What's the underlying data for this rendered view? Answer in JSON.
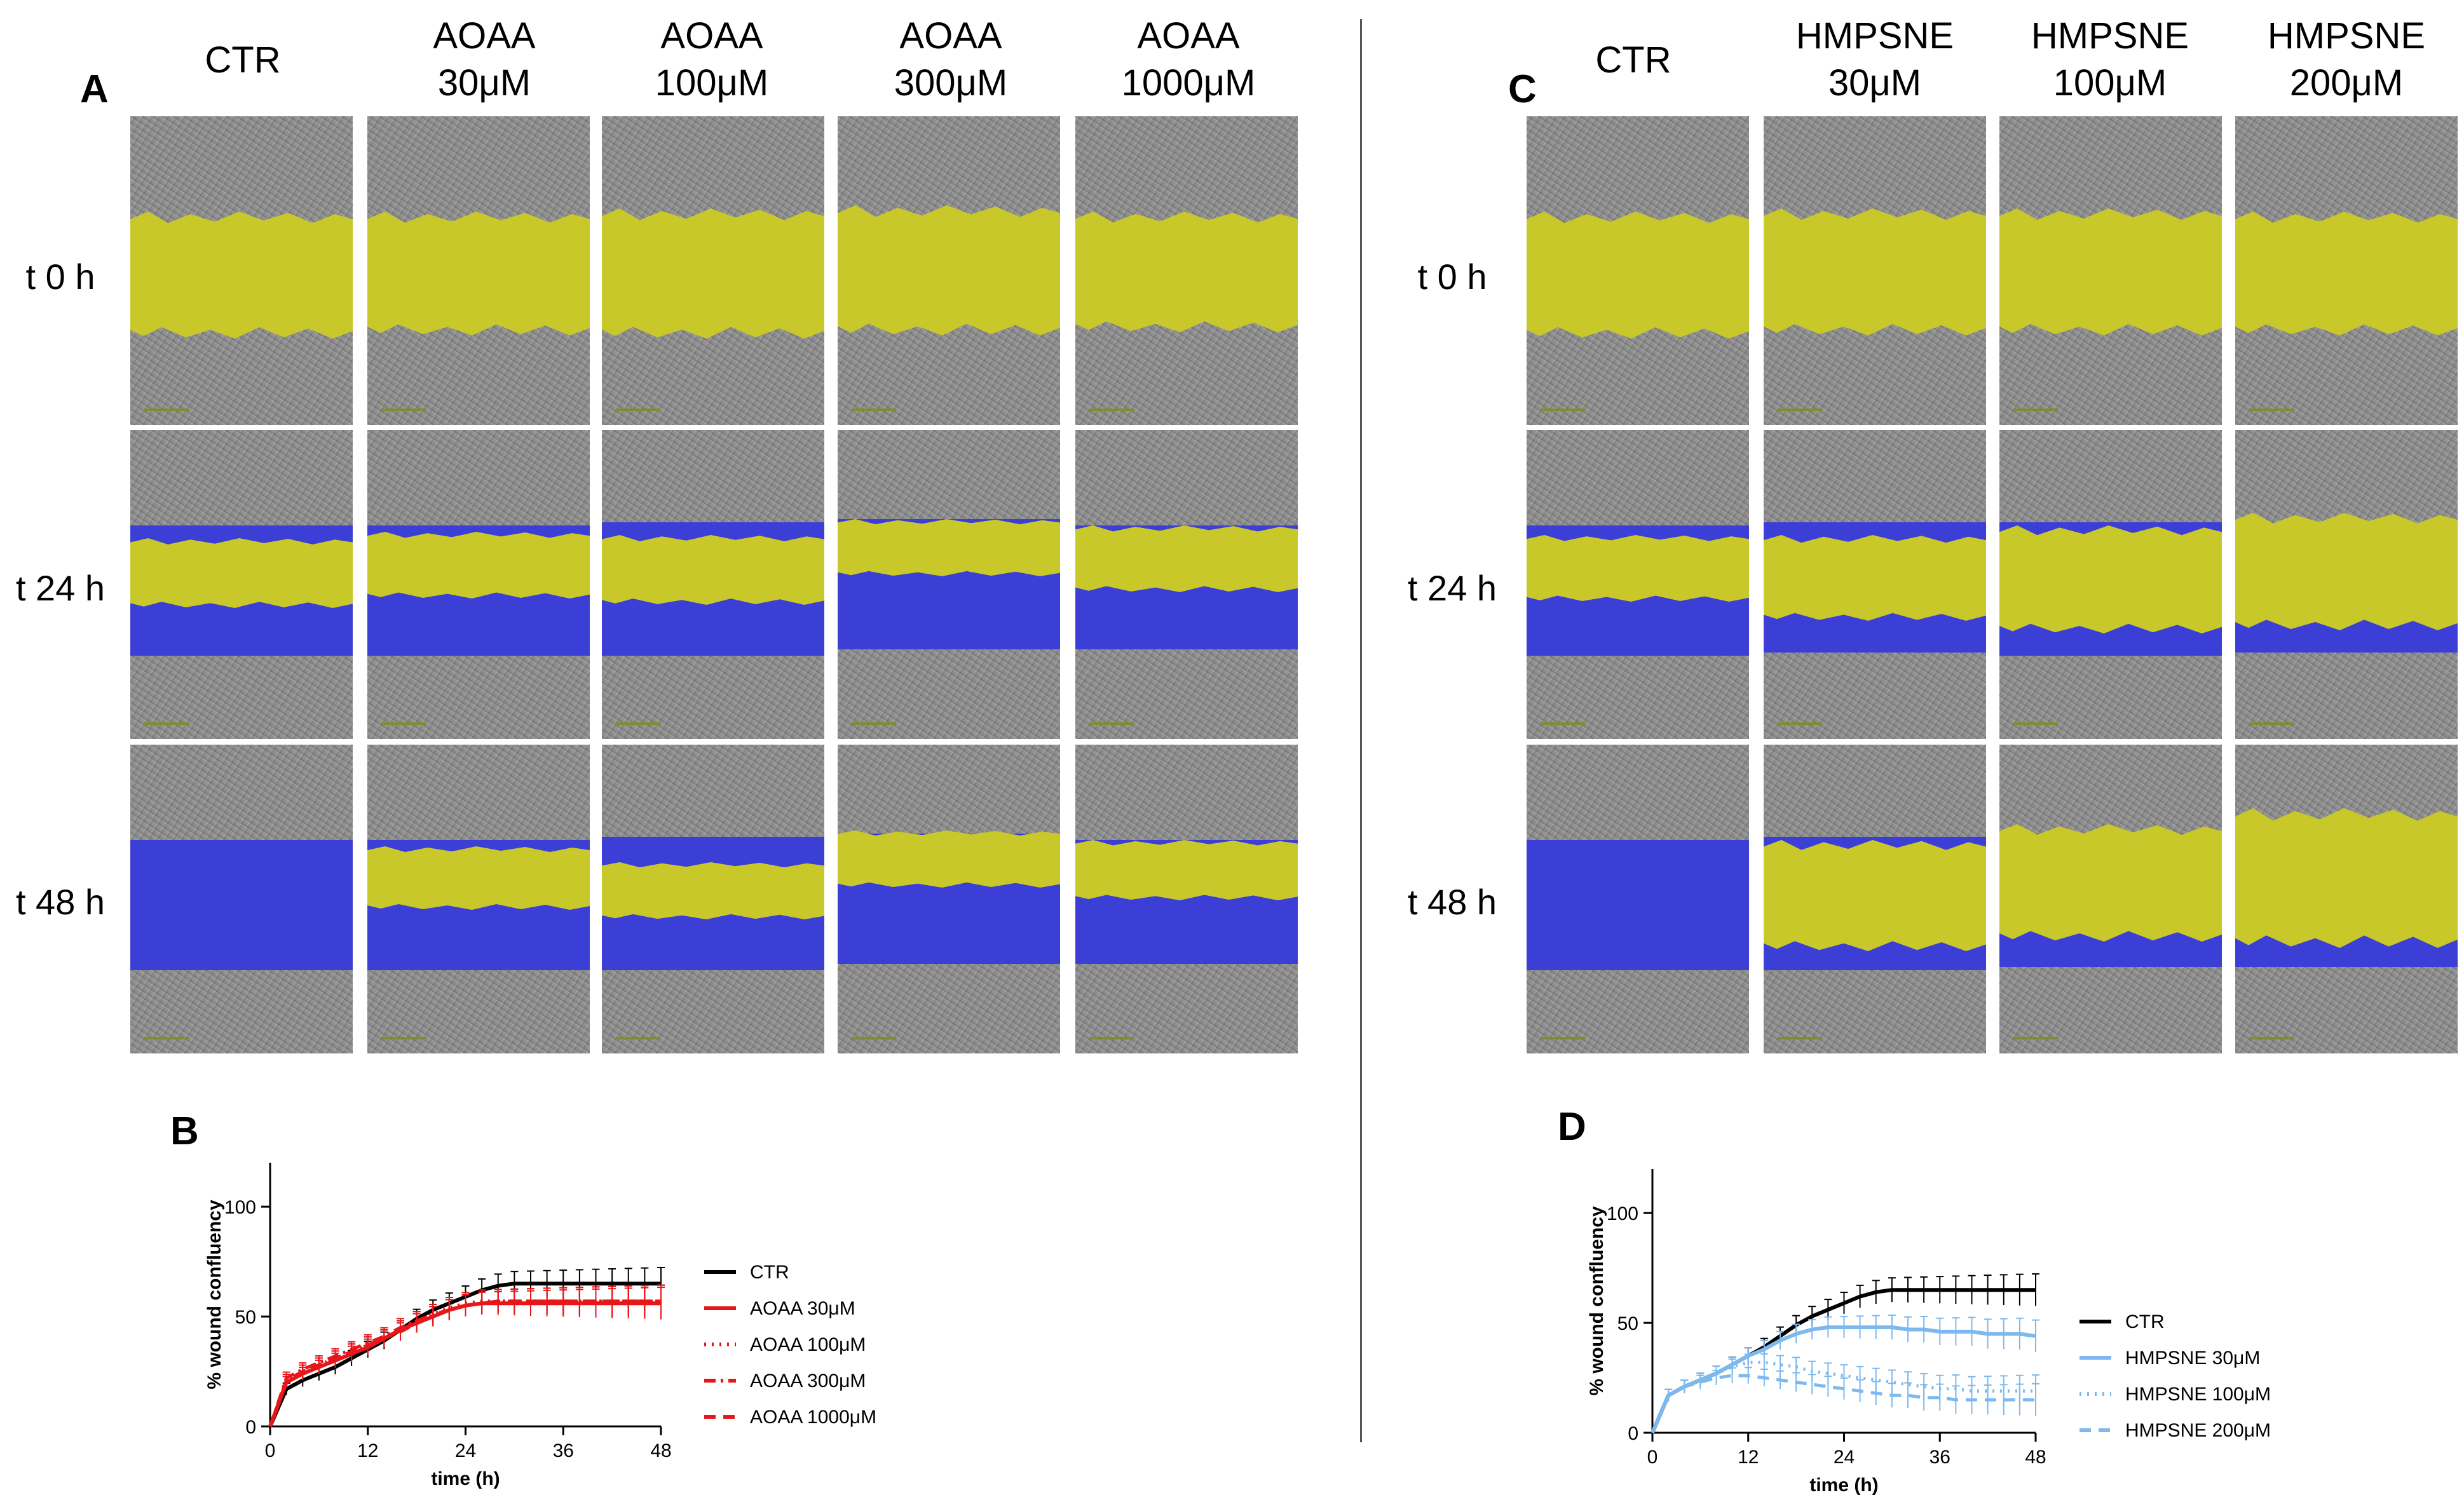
{
  "panels": {
    "A": "A",
    "B": "B",
    "C": "C",
    "D": "D"
  },
  "panel_a": {
    "columns": [
      "CTR",
      "AOAA\n30μM",
      "AOAA\n100μM",
      "AOAA\n300μM",
      "AOAA\n1000μM"
    ],
    "rows": [
      "t 0 h",
      "t 24 h",
      "t 48 h"
    ]
  },
  "panel_c": {
    "columns": [
      "CTR",
      "HMPSNE\n30μM",
      "HMPSNE\n100μM",
      "HMPSNE\n200μM"
    ],
    "rows": [
      "t 0 h",
      "t 24 h",
      "t 48 h"
    ]
  },
  "colors": {
    "ctr": "#000000",
    "aoaa": "#e8161b",
    "hmpsne": "#7db9ee",
    "wound_open": "#c9c82a",
    "wound_closed": "#3b3fd6"
  },
  "chart_data": [
    {
      "id": "B",
      "type": "line",
      "xlabel": "time (h)",
      "ylabel": "% wound confluency",
      "xlim": [
        0,
        48
      ],
      "ylim": [
        0,
        120
      ],
      "xticks": [
        "0",
        "12",
        "24",
        "36",
        "48"
      ],
      "yticks": [
        "0",
        "50",
        "100"
      ],
      "x": [
        0,
        2,
        4,
        6,
        8,
        10,
        12,
        14,
        16,
        18,
        20,
        22,
        24,
        26,
        28,
        30,
        32,
        34,
        36,
        38,
        40,
        42,
        44,
        46,
        48
      ],
      "series": [
        {
          "name": "CTR",
          "color": "#000000",
          "dash": "solid",
          "values": [
            0,
            17,
            21,
            24,
            27,
            31,
            35,
            39,
            44,
            49,
            53,
            56,
            59,
            62,
            64,
            65,
            65,
            65,
            65,
            65,
            65,
            65,
            65,
            65,
            65
          ]
        },
        {
          "name": "AOAA 30μM",
          "color": "#e8161b",
          "dash": "solid",
          "values": [
            0,
            20,
            24,
            27,
            30,
            33,
            36,
            40,
            44,
            47,
            50,
            53,
            55,
            56,
            56,
            56,
            56,
            56,
            56,
            56,
            56,
            56,
            56,
            56,
            56
          ]
        },
        {
          "name": "AOAA 100μM",
          "color": "#e8161b",
          "dash": "dotted",
          "values": [
            0,
            21,
            25,
            28,
            31,
            34,
            37,
            40,
            44,
            48,
            51,
            54,
            56,
            57,
            57,
            57,
            57,
            57,
            57,
            57,
            57,
            57,
            57,
            57,
            57
          ]
        },
        {
          "name": "AOAA 300μM",
          "color": "#e8161b",
          "dash": "dashdot",
          "values": [
            0,
            22,
            26,
            29,
            32,
            35,
            38,
            41,
            45,
            48,
            51,
            53,
            55,
            56,
            57,
            57,
            57,
            57,
            57,
            57,
            57,
            57,
            57,
            57,
            57
          ]
        },
        {
          "name": "AOAA 1000μM",
          "color": "#e8161b",
          "dash": "dashed",
          "values": [
            0,
            21,
            25,
            28,
            31,
            34,
            37,
            40,
            43,
            47,
            50,
            53,
            55,
            56,
            57,
            57,
            57,
            57,
            57,
            57,
            57,
            57,
            57,
            57,
            57
          ]
        }
      ]
    },
    {
      "id": "D",
      "type": "line",
      "xlabel": "time (h)",
      "ylabel": "% wound confluency",
      "xlim": [
        0,
        48
      ],
      "ylim": [
        0,
        120
      ],
      "xticks": [
        "0",
        "12",
        "24",
        "36",
        "48"
      ],
      "yticks": [
        "0",
        "50",
        "100"
      ],
      "x": [
        0,
        2,
        4,
        6,
        8,
        10,
        12,
        14,
        16,
        18,
        20,
        22,
        24,
        26,
        28,
        30,
        32,
        34,
        36,
        38,
        40,
        42,
        44,
        46,
        48
      ],
      "series": [
        {
          "name": "CTR",
          "color": "#000000",
          "dash": "solid",
          "values": [
            0,
            17,
            21,
            24,
            27,
            31,
            35,
            39,
            44,
            49,
            53,
            56,
            59,
            62,
            64,
            65,
            65,
            65,
            65,
            65,
            65,
            65,
            65,
            65,
            65
          ]
        },
        {
          "name": "HMPSNE 30μM",
          "color": "#7db9ee",
          "dash": "solid",
          "values": [
            0,
            17,
            21,
            24,
            27,
            31,
            35,
            38,
            42,
            45,
            47,
            48,
            48,
            48,
            48,
            48,
            47,
            47,
            46,
            46,
            46,
            45,
            45,
            45,
            44
          ]
        },
        {
          "name": "HMPSNE 100μM",
          "color": "#7db9ee",
          "dash": "dotted",
          "values": [
            0,
            17,
            21,
            24,
            27,
            30,
            32,
            32,
            31,
            30,
            28,
            27,
            26,
            25,
            24,
            23,
            22,
            21,
            20,
            20,
            19,
            19,
            19,
            19,
            19
          ]
        },
        {
          "name": "HMPSNE 200μM",
          "color": "#7db9ee",
          "dash": "dashed",
          "values": [
            0,
            17,
            21,
            23,
            25,
            26,
            26,
            25,
            24,
            23,
            22,
            21,
            20,
            19,
            18,
            17,
            17,
            16,
            16,
            15,
            15,
            15,
            15,
            15,
            15
          ]
        }
      ]
    }
  ]
}
